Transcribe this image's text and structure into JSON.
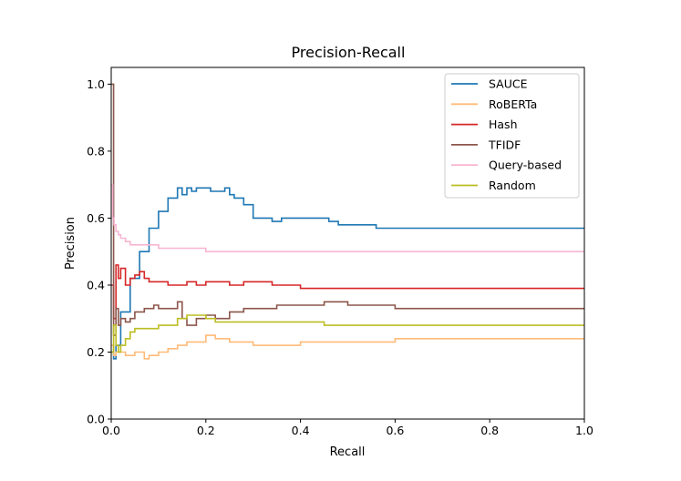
{
  "chart_data": {
    "type": "line",
    "title": "Precision-Recall",
    "xlabel": "Recall",
    "ylabel": "Precision",
    "xlim": [
      0.0,
      1.0
    ],
    "ylim": [
      0.0,
      1.05
    ],
    "xticks": [
      "0.0",
      "0.2",
      "0.4",
      "0.6",
      "0.8",
      "1.0"
    ],
    "yticks": [
      "0.0",
      "0.2",
      "0.4",
      "0.6",
      "0.8",
      "1.0"
    ],
    "legend_position": "top-right",
    "series": [
      {
        "name": "SAUCE",
        "color": "#1f77b4",
        "style": "step",
        "x": [
          0.0,
          0.005,
          0.01,
          0.02,
          0.04,
          0.06,
          0.08,
          0.1,
          0.12,
          0.14,
          0.15,
          0.16,
          0.17,
          0.18,
          0.2,
          0.21,
          0.22,
          0.24,
          0.25,
          0.26,
          0.28,
          0.3,
          0.32,
          0.34,
          0.36,
          0.38,
          0.4,
          0.42,
          0.44,
          0.46,
          0.48,
          0.5,
          0.52,
          0.54,
          0.56,
          0.58,
          0.6,
          0.62,
          0.65,
          0.7,
          0.75,
          0.8,
          0.85,
          0.9,
          0.95,
          1.0
        ],
        "y": [
          0.2,
          0.18,
          0.22,
          0.32,
          0.42,
          0.5,
          0.57,
          0.62,
          0.66,
          0.69,
          0.67,
          0.69,
          0.68,
          0.69,
          0.69,
          0.68,
          0.68,
          0.69,
          0.67,
          0.66,
          0.64,
          0.6,
          0.6,
          0.59,
          0.6,
          0.6,
          0.6,
          0.6,
          0.6,
          0.59,
          0.58,
          0.58,
          0.58,
          0.58,
          0.57,
          0.57,
          0.57,
          0.57,
          0.57,
          0.57,
          0.57,
          0.57,
          0.57,
          0.57,
          0.57,
          0.57
        ]
      },
      {
        "name": "RoBERTa",
        "color": "#ffbb78",
        "style": "step",
        "x": [
          0.0,
          0.005,
          0.01,
          0.02,
          0.03,
          0.05,
          0.07,
          0.08,
          0.1,
          0.12,
          0.14,
          0.16,
          0.18,
          0.2,
          0.22,
          0.25,
          0.28,
          0.3,
          0.32,
          0.35,
          0.4,
          0.45,
          0.5,
          0.55,
          0.6,
          0.65,
          0.7,
          0.75,
          0.8,
          0.85,
          0.9,
          0.95,
          1.0
        ],
        "y": [
          0.22,
          0.19,
          0.2,
          0.2,
          0.19,
          0.2,
          0.18,
          0.19,
          0.2,
          0.21,
          0.22,
          0.23,
          0.23,
          0.25,
          0.24,
          0.23,
          0.23,
          0.22,
          0.22,
          0.22,
          0.23,
          0.23,
          0.23,
          0.23,
          0.24,
          0.24,
          0.24,
          0.24,
          0.24,
          0.24,
          0.24,
          0.24,
          0.24
        ]
      },
      {
        "name": "Hash",
        "color": "#d62728",
        "style": "step",
        "x": [
          0.0,
          0.005,
          0.01,
          0.015,
          0.02,
          0.03,
          0.04,
          0.05,
          0.06,
          0.07,
          0.08,
          0.1,
          0.12,
          0.14,
          0.16,
          0.18,
          0.2,
          0.22,
          0.25,
          0.28,
          0.3,
          0.32,
          0.34,
          0.36,
          0.38,
          0.4,
          0.42,
          0.45,
          0.5,
          0.55,
          0.6,
          0.7,
          0.8,
          0.9,
          1.0
        ],
        "y": [
          0.4,
          0.3,
          0.46,
          0.42,
          0.45,
          0.4,
          0.42,
          0.43,
          0.44,
          0.42,
          0.41,
          0.41,
          0.4,
          0.4,
          0.41,
          0.4,
          0.41,
          0.41,
          0.4,
          0.41,
          0.41,
          0.41,
          0.4,
          0.4,
          0.4,
          0.39,
          0.39,
          0.39,
          0.39,
          0.39,
          0.39,
          0.39,
          0.39,
          0.39,
          0.39
        ]
      },
      {
        "name": "TFIDF",
        "color": "#8c564b",
        "style": "step",
        "x": [
          0.0,
          0.005,
          0.01,
          0.015,
          0.02,
          0.03,
          0.04,
          0.05,
          0.07,
          0.09,
          0.1,
          0.12,
          0.14,
          0.15,
          0.16,
          0.18,
          0.2,
          0.22,
          0.25,
          0.28,
          0.3,
          0.35,
          0.4,
          0.42,
          0.45,
          0.5,
          0.55,
          0.6,
          0.65,
          0.7,
          0.75,
          0.8,
          0.85,
          0.9,
          0.95,
          1.0
        ],
        "y": [
          1.0,
          0.25,
          0.33,
          0.28,
          0.3,
          0.29,
          0.3,
          0.32,
          0.33,
          0.34,
          0.33,
          0.33,
          0.35,
          0.3,
          0.28,
          0.3,
          0.31,
          0.3,
          0.32,
          0.33,
          0.33,
          0.34,
          0.34,
          0.34,
          0.35,
          0.34,
          0.34,
          0.33,
          0.33,
          0.33,
          0.33,
          0.33,
          0.33,
          0.33,
          0.33,
          0.33
        ]
      },
      {
        "name": "Query-based",
        "color": "#f7b6d2",
        "style": "step",
        "x": [
          0.0,
          0.003,
          0.006,
          0.01,
          0.015,
          0.02,
          0.03,
          0.04,
          0.05,
          0.07,
          0.1,
          0.15,
          0.2,
          0.3,
          0.4,
          0.5,
          0.6,
          0.7,
          0.8,
          0.9,
          1.0
        ],
        "y": [
          0.7,
          0.6,
          0.58,
          0.56,
          0.55,
          0.54,
          0.53,
          0.52,
          0.52,
          0.52,
          0.51,
          0.51,
          0.5,
          0.5,
          0.5,
          0.5,
          0.5,
          0.5,
          0.5,
          0.5,
          0.5
        ]
      },
      {
        "name": "Random",
        "color": "#bcbd22",
        "style": "step",
        "x": [
          0.0,
          0.005,
          0.01,
          0.015,
          0.02,
          0.03,
          0.04,
          0.05,
          0.06,
          0.08,
          0.1,
          0.12,
          0.14,
          0.16,
          0.18,
          0.2,
          0.22,
          0.25,
          0.3,
          0.35,
          0.4,
          0.45,
          0.5,
          0.55,
          0.6,
          0.7,
          0.8,
          0.9,
          1.0
        ],
        "y": [
          0.2,
          0.28,
          0.22,
          0.2,
          0.22,
          0.24,
          0.26,
          0.27,
          0.27,
          0.27,
          0.28,
          0.28,
          0.3,
          0.31,
          0.31,
          0.3,
          0.29,
          0.29,
          0.29,
          0.29,
          0.29,
          0.28,
          0.28,
          0.28,
          0.28,
          0.28,
          0.28,
          0.28,
          0.28
        ]
      }
    ]
  }
}
